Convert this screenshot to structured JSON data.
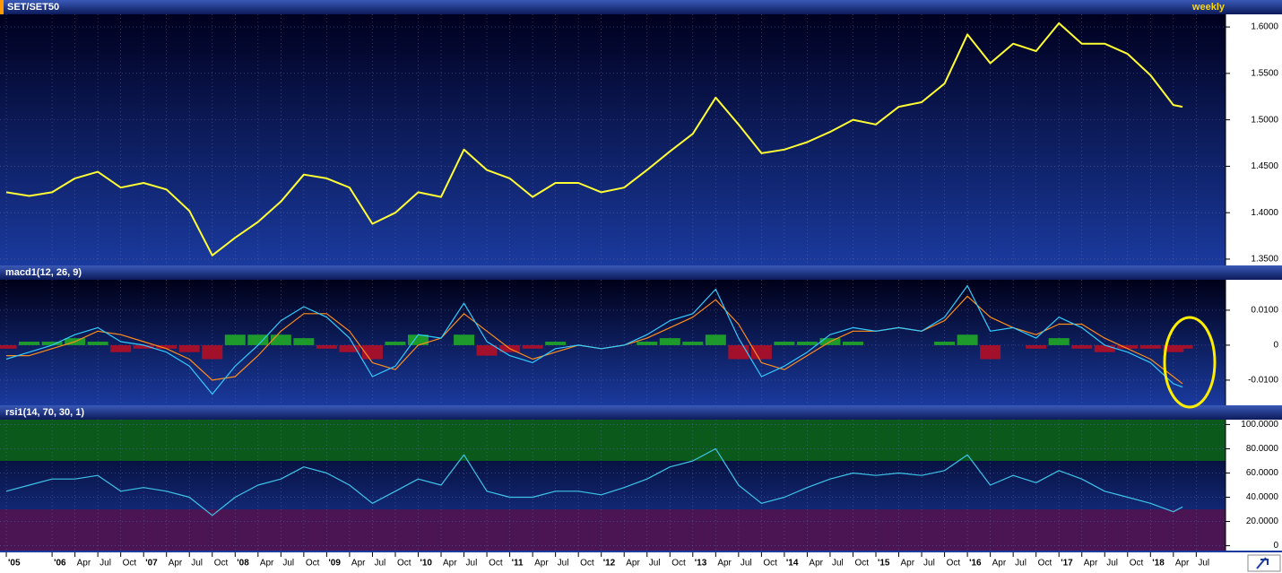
{
  "chart_data": [
    {
      "type": "line",
      "title": "SET/SET50",
      "frequency": "weekly",
      "x": [
        2005.5,
        2005.75,
        2006,
        2006.25,
        2006.5,
        2006.75,
        2007,
        2007.25,
        2007.5,
        2007.75,
        2008,
        2008.25,
        2008.5,
        2008.75,
        2009,
        2009.25,
        2009.5,
        2009.75,
        2010,
        2010.25,
        2010.5,
        2010.75,
        2011,
        2011.25,
        2011.5,
        2011.75,
        2012,
        2012.25,
        2012.5,
        2012.75,
        2013,
        2013.25,
        2013.5,
        2013.75,
        2014,
        2014.25,
        2014.5,
        2014.75,
        2015,
        2015.25,
        2015.5,
        2015.75,
        2016,
        2016.25,
        2016.5,
        2016.75,
        2017,
        2017.25,
        2017.5,
        2017.75,
        2018,
        2018.25,
        2018.35
      ],
      "xlim": [
        2005.48,
        2018.81
      ],
      "ylim": [
        1.3432,
        1.6136
      ],
      "yticks": [
        {
          "value": 1.35,
          "label": "1.3500"
        },
        {
          "value": 1.4,
          "label": "1.4000"
        },
        {
          "value": 1.45,
          "label": "1.4500"
        },
        {
          "value": 1.5,
          "label": "1.5000"
        },
        {
          "value": 1.55,
          "label": "1.5500"
        },
        {
          "value": 1.6,
          "label": "1.6000"
        }
      ],
      "grid": true,
      "series": [
        {
          "color": "#ffff33",
          "values": [
            1.422,
            1.418,
            1.422,
            1.437,
            1.444,
            1.427,
            1.432,
            1.425,
            1.402,
            1.354,
            1.373,
            1.39,
            1.412,
            1.441,
            1.437,
            1.427,
            1.388,
            1.4,
            1.422,
            1.417,
            1.468,
            1.446,
            1.437,
            1.417,
            1.432,
            1.432,
            1.422,
            1.427,
            1.446,
            1.466,
            1.485,
            1.524,
            1.495,
            1.464,
            1.468,
            1.476,
            1.487,
            1.5,
            1.495,
            1.514,
            1.519,
            1.539,
            1.592,
            1.561,
            1.582,
            1.574,
            1.604,
            1.582,
            1.582,
            1.571,
            1.548,
            1.516,
            1.514
          ]
        }
      ]
    },
    {
      "type": "line",
      "title": "macd1(12, 26, 9)",
      "x": [
        2005.5,
        2005.75,
        2006,
        2006.25,
        2006.5,
        2006.75,
        2007,
        2007.25,
        2007.5,
        2007.75,
        2008,
        2008.25,
        2008.5,
        2008.75,
        2009,
        2009.25,
        2009.5,
        2009.75,
        2010,
        2010.25,
        2010.5,
        2010.75,
        2011,
        2011.25,
        2011.5,
        2011.75,
        2012,
        2012.25,
        2012.5,
        2012.75,
        2013,
        2013.25,
        2013.5,
        2013.75,
        2014,
        2014.25,
        2014.5,
        2014.75,
        2015,
        2015.25,
        2015.5,
        2015.75,
        2016,
        2016.25,
        2016.5,
        2016.75,
        2017,
        2017.25,
        2017.5,
        2017.75,
        2018,
        2018.25,
        2018.35
      ],
      "xlim": [
        2005.48,
        2018.81
      ],
      "ylim": [
        -0.0172,
        0.0187
      ],
      "yticks": [
        {
          "value": -0.01,
          "label": "-0.0100"
        },
        0,
        {
          "value": 0.01,
          "label": "0.0100"
        }
      ],
      "grid": true,
      "series": [
        {
          "type": "bar",
          "color": "#1e9a2c",
          "negative_color": "#a3102c",
          "values": [
            -0.001,
            0.001,
            0.001,
            0.002,
            0.001,
            -0.002,
            -0.001,
            -0.001,
            -0.002,
            -0.004,
            0.003,
            0.003,
            0.003,
            0.002,
            -0.001,
            -0.002,
            -0.004,
            0.001,
            0.003,
            0.0,
            0.003,
            -0.003,
            -0.002,
            -0.001,
            0.001,
            0.0,
            0.0,
            0.0,
            0.001,
            0.002,
            0.001,
            0.003,
            -0.004,
            -0.004,
            0.001,
            0.001,
            0.002,
            0.001,
            0.0,
            0.0,
            0.0,
            0.001,
            0.003,
            -0.004,
            0.0,
            -0.001,
            0.002,
            -0.001,
            -0.002,
            -0.001,
            -0.001,
            -0.002,
            -0.001
          ]
        },
        {
          "type": "line",
          "color": "#ff8c1a",
          "values": [
            -0.003,
            -0.003,
            -0.001,
            0.001,
            0.004,
            0.003,
            0.001,
            -0.001,
            -0.004,
            -0.01,
            -0.009,
            -0.003,
            0.004,
            0.009,
            0.009,
            0.004,
            -0.005,
            -0.007,
            0.0,
            0.002,
            0.009,
            0.004,
            -0.001,
            -0.004,
            -0.002,
            0.0,
            -0.001,
            0.0,
            0.002,
            0.005,
            0.008,
            0.013,
            0.006,
            -0.005,
            -0.007,
            -0.003,
            0.001,
            0.004,
            0.004,
            0.005,
            0.004,
            0.007,
            0.014,
            0.008,
            0.005,
            0.003,
            0.006,
            0.006,
            0.002,
            -0.001,
            -0.004,
            -0.009,
            -0.011
          ]
        },
        {
          "type": "line",
          "color": "#33ccff",
          "values": [
            -0.004,
            -0.002,
            0.0,
            0.003,
            0.005,
            0.001,
            0.0,
            -0.002,
            -0.006,
            -0.014,
            -0.006,
            0.0,
            0.007,
            0.011,
            0.008,
            0.002,
            -0.009,
            -0.006,
            0.003,
            0.002,
            0.012,
            0.001,
            -0.003,
            -0.005,
            -0.001,
            0.0,
            -0.001,
            0.0,
            0.003,
            0.007,
            0.009,
            0.016,
            0.002,
            -0.009,
            -0.006,
            -0.002,
            0.003,
            0.005,
            0.004,
            0.005,
            0.004,
            0.008,
            0.017,
            0.004,
            0.005,
            0.002,
            0.008,
            0.005,
            0.0,
            -0.002,
            -0.005,
            -0.011,
            -0.012
          ]
        }
      ]
    },
    {
      "type": "line",
      "title": "rsi1(14, 70, 30, 1)",
      "x": [
        2005.5,
        2005.75,
        2006,
        2006.25,
        2006.5,
        2006.75,
        2007,
        2007.25,
        2007.5,
        2007.75,
        2008,
        2008.25,
        2008.5,
        2008.75,
        2009,
        2009.25,
        2009.5,
        2009.75,
        2010,
        2010.25,
        2010.5,
        2010.75,
        2011,
        2011.25,
        2011.5,
        2011.75,
        2012,
        2012.25,
        2012.5,
        2012.75,
        2013,
        2013.25,
        2013.5,
        2013.75,
        2014,
        2014.25,
        2014.5,
        2014.75,
        2015,
        2015.25,
        2015.5,
        2015.75,
        2016,
        2016.25,
        2016.5,
        2016.75,
        2017,
        2017.25,
        2017.5,
        2017.75,
        2018,
        2018.25,
        2018.35
      ],
      "xlim": [
        2005.48,
        2018.81
      ],
      "ylim": [
        -4,
        104
      ],
      "yticks": [
        0,
        {
          "value": 20,
          "label": "20.0000"
        },
        {
          "value": 40,
          "label": "40.0000"
        },
        {
          "value": 60,
          "label": "60.0000"
        },
        {
          "value": 80,
          "label": "80.0000"
        },
        {
          "value": 100,
          "label": "100.0000"
        }
      ],
      "overbought": 70,
      "oversold": 30,
      "overbought_color": "#0b5a1c",
      "oversold_color": "#4a1552",
      "grid": true,
      "xticks": [
        {
          "value": 2005.5,
          "label": "'05"
        },
        {
          "value": 2006,
          "label": "'06"
        },
        {
          "value": 2006.25,
          "label": "Apr"
        },
        {
          "value": 2006.5,
          "label": "Jul"
        },
        {
          "value": 2006.75,
          "label": "Oct"
        },
        {
          "value": 2007,
          "label": "'07"
        },
        {
          "value": 2007.25,
          "label": "Apr"
        },
        {
          "value": 2007.5,
          "label": "Jul"
        },
        {
          "value": 2007.75,
          "label": "Oct"
        },
        {
          "value": 2008,
          "label": "'08"
        },
        {
          "value": 2008.25,
          "label": "Apr"
        },
        {
          "value": 2008.5,
          "label": "Jul"
        },
        {
          "value": 2008.75,
          "label": "Oct"
        },
        {
          "value": 2009,
          "label": "'09"
        },
        {
          "value": 2009.25,
          "label": "Apr"
        },
        {
          "value": 2009.5,
          "label": "Jul"
        },
        {
          "value": 2009.75,
          "label": "Oct"
        },
        {
          "value": 2010,
          "label": "'10"
        },
        {
          "value": 2010.25,
          "label": "Apr"
        },
        {
          "value": 2010.5,
          "label": "Jul"
        },
        {
          "value": 2010.75,
          "label": "Oct"
        },
        {
          "value": 2011,
          "label": "'11"
        },
        {
          "value": 2011.25,
          "label": "Apr"
        },
        {
          "value": 2011.5,
          "label": "Jul"
        },
        {
          "value": 2011.75,
          "label": "Oct"
        },
        {
          "value": 2012,
          "label": "'12"
        },
        {
          "value": 2012.25,
          "label": "Apr"
        },
        {
          "value": 2012.5,
          "label": "Jul"
        },
        {
          "value": 2012.75,
          "label": "Oct"
        },
        {
          "value": 2013,
          "label": "'13"
        },
        {
          "value": 2013.25,
          "label": "Apr"
        },
        {
          "value": 2013.5,
          "label": "Jul"
        },
        {
          "value": 2013.75,
          "label": "Oct"
        },
        {
          "value": 2014,
          "label": "'14"
        },
        {
          "value": 2014.25,
          "label": "Apr"
        },
        {
          "value": 2014.5,
          "label": "Jul"
        },
        {
          "value": 2014.75,
          "label": "Oct"
        },
        {
          "value": 2015,
          "label": "'15"
        },
        {
          "value": 2015.25,
          "label": "Apr"
        },
        {
          "value": 2015.5,
          "label": "Jul"
        },
        {
          "value": 2015.75,
          "label": "Oct"
        },
        {
          "value": 2016,
          "label": "'16"
        },
        {
          "value": 2016.25,
          "label": "Apr"
        },
        {
          "value": 2016.5,
          "label": "Jul"
        },
        {
          "value": 2016.75,
          "label": "Oct"
        },
        {
          "value": 2017,
          "label": "'17"
        },
        {
          "value": 2017.25,
          "label": "Apr"
        },
        {
          "value": 2017.5,
          "label": "Jul"
        },
        {
          "value": 2017.75,
          "label": "Oct"
        },
        {
          "value": 2018,
          "label": "'18"
        },
        {
          "value": 2018.25,
          "label": "Apr"
        },
        {
          "value": 2018.5,
          "label": "Jul"
        }
      ],
      "series": [
        {
          "color": "#3ec4e8",
          "values": [
            45,
            50,
            55,
            55,
            58,
            45,
            48,
            45,
            40,
            25,
            40,
            50,
            55,
            65,
            60,
            50,
            35,
            45,
            55,
            50,
            75,
            45,
            40,
            40,
            45,
            45,
            42,
            48,
            55,
            65,
            70,
            80,
            50,
            35,
            40,
            48,
            55,
            60,
            58,
            60,
            58,
            62,
            75,
            50,
            58,
            52,
            62,
            55,
            45,
            40,
            35,
            28,
            32
          ]
        }
      ]
    }
  ]
}
